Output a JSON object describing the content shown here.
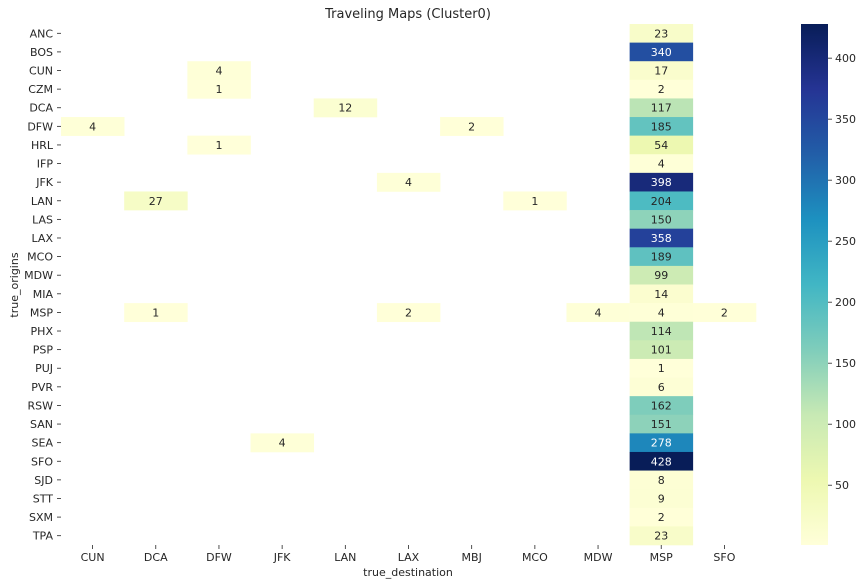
{
  "chart_data": {
    "type": "heatmap",
    "title": "Traveling Maps (Cluster0)",
    "xlabel": "true_destination",
    "ylabel": "true_origins",
    "x_categories": [
      "CUN",
      "DCA",
      "DFW",
      "JFK",
      "LAN",
      "LAX",
      "MBJ",
      "MCO",
      "MDW",
      "MSP",
      "SFO"
    ],
    "y_categories": [
      "ANC",
      "BOS",
      "CUN",
      "CZM",
      "DCA",
      "DFW",
      "HRL",
      "IFP",
      "JFK",
      "LAN",
      "LAS",
      "LAX",
      "MCO",
      "MDW",
      "MIA",
      "MSP",
      "PHX",
      "PSP",
      "PUJ",
      "PVR",
      "RSW",
      "SAN",
      "SEA",
      "SFO",
      "SJD",
      "STT",
      "SXM",
      "TPA"
    ],
    "cells": [
      {
        "origin": "ANC",
        "destination": "MSP",
        "value": 23
      },
      {
        "origin": "BOS",
        "destination": "MSP",
        "value": 340
      },
      {
        "origin": "CUN",
        "destination": "DFW",
        "value": 4
      },
      {
        "origin": "CUN",
        "destination": "MSP",
        "value": 17
      },
      {
        "origin": "CZM",
        "destination": "DFW",
        "value": 1
      },
      {
        "origin": "CZM",
        "destination": "MSP",
        "value": 2
      },
      {
        "origin": "DCA",
        "destination": "LAN",
        "value": 12
      },
      {
        "origin": "DCA",
        "destination": "MSP",
        "value": 117
      },
      {
        "origin": "DFW",
        "destination": "CUN",
        "value": 4
      },
      {
        "origin": "DFW",
        "destination": "MBJ",
        "value": 2
      },
      {
        "origin": "DFW",
        "destination": "MSP",
        "value": 185
      },
      {
        "origin": "HRL",
        "destination": "DFW",
        "value": 1
      },
      {
        "origin": "HRL",
        "destination": "MSP",
        "value": 54
      },
      {
        "origin": "IFP",
        "destination": "MSP",
        "value": 4
      },
      {
        "origin": "JFK",
        "destination": "LAX",
        "value": 4
      },
      {
        "origin": "JFK",
        "destination": "MSP",
        "value": 398
      },
      {
        "origin": "LAN",
        "destination": "DCA",
        "value": 27
      },
      {
        "origin": "LAN",
        "destination": "MCO",
        "value": 1
      },
      {
        "origin": "LAN",
        "destination": "MSP",
        "value": 204
      },
      {
        "origin": "LAS",
        "destination": "MSP",
        "value": 150
      },
      {
        "origin": "LAX",
        "destination": "MSP",
        "value": 358
      },
      {
        "origin": "MCO",
        "destination": "MSP",
        "value": 189
      },
      {
        "origin": "MDW",
        "destination": "MSP",
        "value": 99
      },
      {
        "origin": "MIA",
        "destination": "MSP",
        "value": 14
      },
      {
        "origin": "MSP",
        "destination": "DCA",
        "value": 1
      },
      {
        "origin": "MSP",
        "destination": "LAX",
        "value": 2
      },
      {
        "origin": "MSP",
        "destination": "MDW",
        "value": 4
      },
      {
        "origin": "MSP",
        "destination": "MSP",
        "value": 4
      },
      {
        "origin": "MSP",
        "destination": "SFO",
        "value": 2
      },
      {
        "origin": "PHX",
        "destination": "MSP",
        "value": 114
      },
      {
        "origin": "PSP",
        "destination": "MSP",
        "value": 101
      },
      {
        "origin": "PUJ",
        "destination": "MSP",
        "value": 1
      },
      {
        "origin": "PVR",
        "destination": "MSP",
        "value": 6
      },
      {
        "origin": "RSW",
        "destination": "MSP",
        "value": 162
      },
      {
        "origin": "SAN",
        "destination": "MSP",
        "value": 151
      },
      {
        "origin": "SEA",
        "destination": "JFK",
        "value": 4
      },
      {
        "origin": "SEA",
        "destination": "MSP",
        "value": 278
      },
      {
        "origin": "SFO",
        "destination": "MSP",
        "value": 428
      },
      {
        "origin": "SJD",
        "destination": "MSP",
        "value": 8
      },
      {
        "origin": "STT",
        "destination": "MSP",
        "value": 9
      },
      {
        "origin": "SXM",
        "destination": "MSP",
        "value": 2
      },
      {
        "origin": "TPA",
        "destination": "MSP",
        "value": 23
      }
    ],
    "colorbar": {
      "colormap": "YlGnBu",
      "vmin": 1,
      "vmax": 428,
      "ticks": [
        50,
        100,
        150,
        200,
        250,
        300,
        350,
        400
      ]
    },
    "grid": false,
    "legend": "colorbar-right"
  }
}
